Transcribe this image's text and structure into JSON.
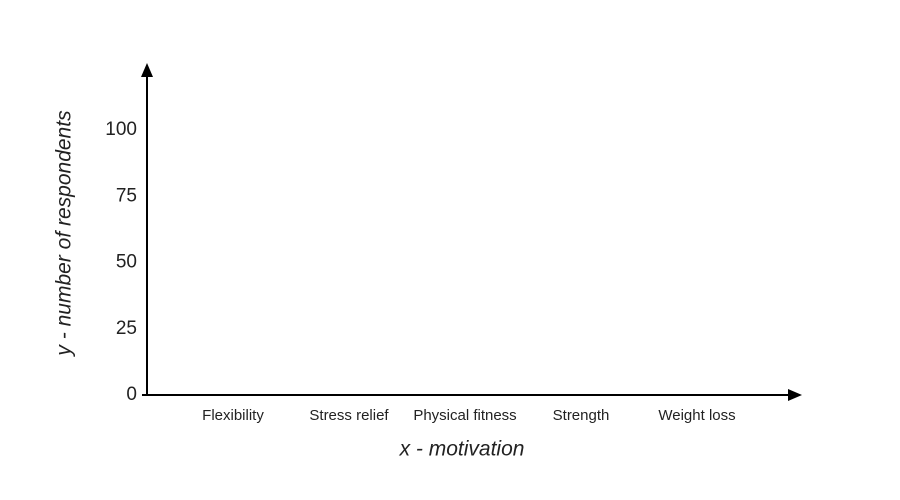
{
  "chart_data": {
    "type": "bar",
    "xlabel": "x - motivation",
    "ylabel": "y - number of respondents",
    "categories": [
      "Flexibility",
      "Stress relief",
      "Physical fitness",
      "Strength",
      "Weight loss"
    ],
    "ylim": [
      0,
      120
    ],
    "yticks": [
      0,
      25,
      50,
      75,
      100
    ],
    "grid": false
  }
}
